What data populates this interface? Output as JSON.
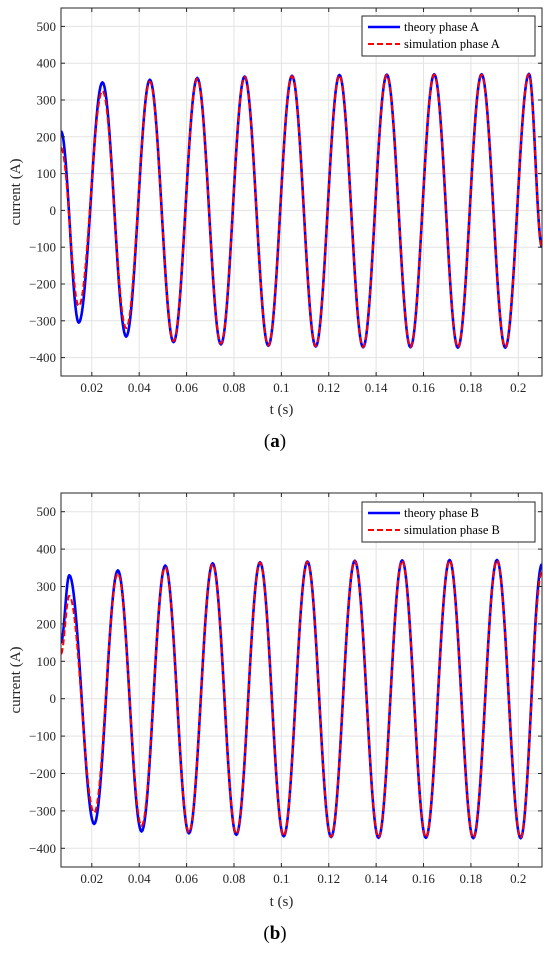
{
  "figure": {
    "panels": [
      {
        "caption_open": "(",
        "caption_letter": "a",
        "caption_close": ")"
      },
      {
        "caption_open": "(",
        "caption_letter": "b",
        "caption_close": ")"
      }
    ]
  },
  "colors": {
    "theory": "#0000ff",
    "simulation": "#ff0000",
    "grid": "#e3e3e3",
    "axis": "#262626"
  },
  "chart_data": [
    {
      "type": "line",
      "xlabel": "t (s)",
      "ylabel": "current (A)",
      "xlim": [
        0.007,
        0.21
      ],
      "ylim": [
        -450,
        550
      ],
      "xticks": [
        0.02,
        0.04,
        0.06,
        0.08,
        0.1,
        0.12,
        0.14,
        0.16,
        0.18,
        0.2
      ],
      "xtick_labels": [
        "0.02",
        "0.04",
        "0.06",
        "0.08",
        "0.1",
        "0.12",
        "0.14",
        "0.16",
        "0.18",
        "0.2"
      ],
      "yticks": [
        -400,
        -300,
        -200,
        -100,
        0,
        100,
        200,
        300,
        400,
        500
      ],
      "ytick_labels": [
        "−400",
        "−300",
        "−200",
        "−100",
        "0",
        "100",
        "200",
        "300",
        "400",
        "500"
      ],
      "grid": true,
      "legend_position": "top-right",
      "series": [
        {
          "name": "theory phase A",
          "style": "solid",
          "x": [
            0.007,
            0.0145,
            0.0245,
            0.0345,
            0.0445,
            0.0545,
            0.0645,
            0.0745,
            0.0845,
            0.0945,
            0.1045,
            0.1145,
            0.1245,
            0.1345,
            0.1445,
            0.1545,
            0.1645,
            0.1745,
            0.1845,
            0.1945,
            0.2045,
            0.21
          ],
          "y": [
            215,
            -305,
            348,
            -343,
            355,
            -358,
            360,
            -364,
            364,
            -368,
            366,
            -370,
            368,
            -372,
            369,
            -372,
            370,
            -373,
            370,
            -373,
            371,
            -100
          ]
        },
        {
          "name": "simulation phase A",
          "style": "dashed",
          "x": [
            0.007,
            0.0145,
            0.0245,
            0.0345,
            0.0445,
            0.0545,
            0.0645,
            0.0745,
            0.0845,
            0.0945,
            0.1045,
            0.1145,
            0.1245,
            0.1345,
            0.1445,
            0.1545,
            0.1645,
            0.1745,
            0.1845,
            0.1945,
            0.2045,
            0.21
          ],
          "y": [
            170,
            -260,
            325,
            -320,
            350,
            -355,
            358,
            -362,
            363,
            -367,
            365,
            -369,
            367,
            -371,
            368,
            -371,
            369,
            -372,
            369,
            -372,
            370,
            -100
          ]
        }
      ]
    },
    {
      "type": "line",
      "xlabel": "t (s)",
      "ylabel": "current (A)",
      "xlim": [
        0.007,
        0.21
      ],
      "ylim": [
        -450,
        550
      ],
      "xticks": [
        0.02,
        0.04,
        0.06,
        0.08,
        0.1,
        0.12,
        0.14,
        0.16,
        0.18,
        0.2
      ],
      "xtick_labels": [
        "0.02",
        "0.04",
        "0.06",
        "0.08",
        "0.1",
        "0.12",
        "0.14",
        "0.16",
        "0.18",
        "0.2"
      ],
      "yticks": [
        -400,
        -300,
        -200,
        -100,
        0,
        100,
        200,
        300,
        400,
        500
      ],
      "ytick_labels": [
        "−400",
        "−300",
        "−200",
        "−100",
        "0",
        "100",
        "200",
        "300",
        "400",
        "500"
      ],
      "grid": true,
      "legend_position": "top-right",
      "series": [
        {
          "name": "theory phase B",
          "style": "solid",
          "x": [
            0.007,
            0.0105,
            0.021,
            0.031,
            0.041,
            0.051,
            0.061,
            0.071,
            0.081,
            0.091,
            0.101,
            0.111,
            0.121,
            0.131,
            0.141,
            0.151,
            0.161,
            0.171,
            0.181,
            0.191,
            0.201,
            0.21
          ],
          "y": [
            150,
            330,
            -335,
            343,
            -355,
            356,
            -360,
            362,
            -364,
            365,
            -368,
            367,
            -370,
            369,
            -372,
            370,
            -372,
            371,
            -373,
            371,
            -373,
            360
          ]
        },
        {
          "name": "simulation phase B",
          "style": "dashed",
          "x": [
            0.007,
            0.0105,
            0.021,
            0.031,
            0.041,
            0.051,
            0.061,
            0.071,
            0.081,
            0.091,
            0.101,
            0.111,
            0.121,
            0.131,
            0.141,
            0.151,
            0.161,
            0.171,
            0.181,
            0.191,
            0.201,
            0.21
          ],
          "y": [
            120,
            275,
            -305,
            335,
            -340,
            352,
            -357,
            360,
            -362,
            364,
            -367,
            366,
            -369,
            368,
            -371,
            369,
            -371,
            370,
            -372,
            370,
            -372,
            340
          ]
        }
      ]
    }
  ]
}
